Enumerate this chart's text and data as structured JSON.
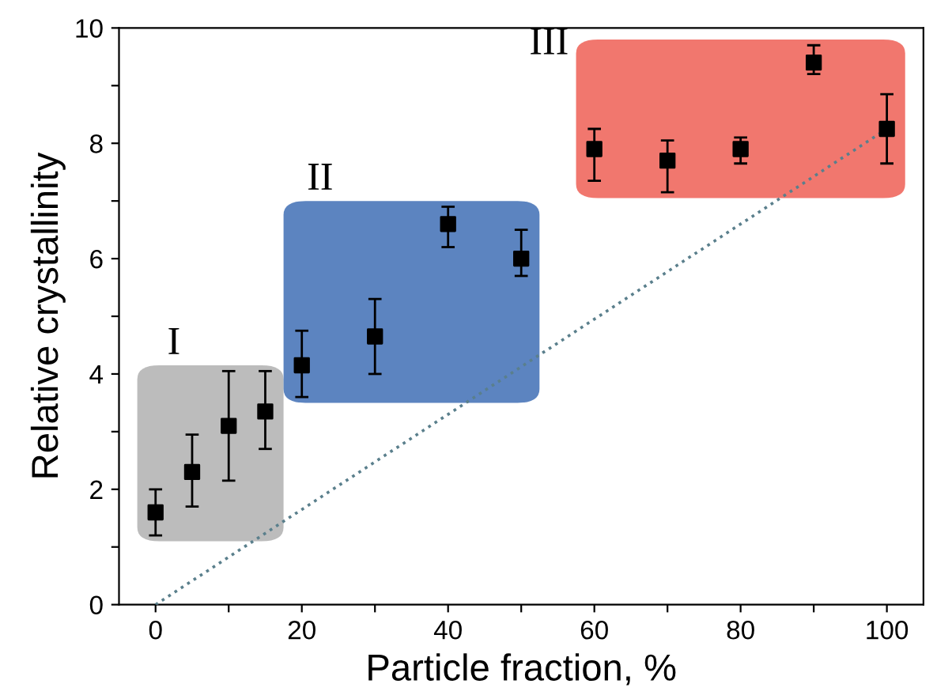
{
  "chart_data": {
    "type": "scatter",
    "xlabel": "Particle fraction, %",
    "ylabel": "Relative crystallinity",
    "xlim": [
      -5,
      105
    ],
    "ylim": [
      0,
      10
    ],
    "xticks": [
      0,
      {
        "value": 10,
        "label": null
      },
      20,
      {
        "value": 30,
        "label": null
      },
      40,
      {
        "value": 50,
        "label": null
      },
      60,
      {
        "value": 70,
        "label": null
      },
      80,
      {
        "value": 90,
        "label": null
      },
      100
    ],
    "yticks": [
      0,
      {
        "value": 1,
        "label": null
      },
      2,
      {
        "value": 3,
        "label": null
      },
      4,
      {
        "value": 5,
        "label": null
      },
      6,
      {
        "value": 7,
        "label": null
      },
      8,
      {
        "value": 9,
        "label": null
      },
      10
    ],
    "annotations": [
      "I",
      "II",
      "III"
    ],
    "series": [
      {
        "color": "#000000",
        "marker": "square",
        "x": [
          0,
          5,
          10,
          15,
          20,
          30,
          40,
          50,
          60,
          70,
          80,
          90,
          100
        ],
        "values": [
          1.6,
          2.3,
          3.1,
          3.35,
          4.15,
          4.65,
          6.6,
          6.0,
          7.9,
          7.7,
          7.9,
          9.4,
          8.25
        ],
        "errors": [
          [
            1.2,
            2.0
          ],
          [
            1.7,
            2.95
          ],
          [
            2.15,
            4.05
          ],
          [
            2.7,
            4.05
          ],
          [
            3.6,
            4.75
          ],
          [
            4.0,
            5.3
          ],
          [
            6.2,
            6.9
          ],
          [
            5.7,
            6.5
          ],
          [
            7.35,
            8.25
          ],
          [
            7.15,
            8.05
          ],
          [
            7.65,
            8.1
          ],
          [
            9.2,
            9.7
          ],
          [
            7.65,
            8.85
          ]
        ]
      },
      {
        "type": "line",
        "color": "#5a7f8c",
        "line_style": "dotted",
        "marker": "none",
        "x": [
          0,
          100
        ],
        "values": [
          0,
          8.25
        ]
      }
    ]
  }
}
